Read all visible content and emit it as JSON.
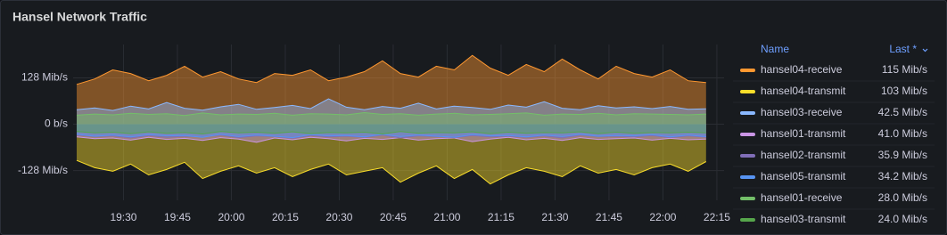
{
  "chart_data": {
    "type": "area",
    "title": "Hansel Network Traffic",
    "x": [
      "19:17",
      "19:22",
      "19:27",
      "19:32",
      "19:37",
      "19:42",
      "19:47",
      "19:52",
      "19:57",
      "20:02",
      "20:07",
      "20:12",
      "20:17",
      "20:22",
      "20:27",
      "20:32",
      "20:37",
      "20:42",
      "20:47",
      "20:52",
      "20:57",
      "21:02",
      "21:07",
      "21:12",
      "21:17",
      "21:22",
      "21:27",
      "21:32",
      "21:37",
      "21:42",
      "21:47",
      "21:52",
      "21:57",
      "22:02",
      "22:07",
      "22:12"
    ],
    "xlim": [
      "19:16",
      "22:17"
    ],
    "xticks": [
      "19:30",
      "19:45",
      "20:00",
      "20:15",
      "20:30",
      "20:45",
      "21:00",
      "21:15",
      "21:30",
      "21:45",
      "22:00",
      "22:15"
    ],
    "ylim": [
      -210,
      220
    ],
    "yticks": [
      {
        "value": 128,
        "label": "128 Mib/s"
      },
      {
        "value": 0,
        "label": "0 b/s"
      },
      {
        "value": -128,
        "label": "-128 Mib/s"
      }
    ],
    "grid": true,
    "legend": {
      "position": "right",
      "headers": [
        "Name",
        "Last *"
      ]
    },
    "series": [
      {
        "name": "hansel04-receive",
        "color": "#ff9830",
        "last_label": "115 Mib/s",
        "values": [
          110,
          125,
          150,
          140,
          120,
          135,
          160,
          130,
          145,
          125,
          115,
          140,
          135,
          150,
          120,
          130,
          145,
          175,
          140,
          130,
          160,
          150,
          190,
          155,
          135,
          165,
          145,
          180,
          150,
          125,
          160,
          140,
          130,
          150,
          120,
          115
        ]
      },
      {
        "name": "hansel04-transmit",
        "color": "#fade2a",
        "last_label": "103 Mib/s",
        "values": [
          -100,
          -120,
          -130,
          -110,
          -140,
          -125,
          -105,
          -150,
          -130,
          -115,
          -135,
          -120,
          -145,
          -125,
          -110,
          -140,
          -130,
          -120,
          -160,
          -135,
          -115,
          -150,
          -125,
          -165,
          -140,
          -120,
          -130,
          -145,
          -115,
          -135,
          -125,
          -140,
          -120,
          -110,
          -130,
          -103
        ]
      },
      {
        "name": "hansel03-receive",
        "color": "#8ab8ff",
        "last_label": "42.5 Mib/s",
        "values": [
          40,
          45,
          38,
          50,
          42,
          60,
          44,
          39,
          48,
          55,
          41,
          46,
          52,
          43,
          70,
          47,
          40,
          49,
          44,
          58,
          42,
          50,
          46,
          41,
          53,
          47,
          62,
          44,
          40,
          51,
          45,
          48,
          43,
          49,
          41,
          42.5
        ]
      },
      {
        "name": "hansel01-transmit",
        "color": "#ca95e5",
        "last_label": "41.0 Mib/s",
        "values": [
          -35,
          -40,
          -38,
          -44,
          -36,
          -42,
          -39,
          -45,
          -37,
          -41,
          -50,
          -38,
          -43,
          -36,
          -40,
          -46,
          -39,
          -42,
          -37,
          -44,
          -40,
          -38,
          -48,
          -41,
          -36,
          -43,
          -39,
          -45,
          -37,
          -42,
          -40,
          -38,
          -44,
          -39,
          -43,
          -41
        ]
      },
      {
        "name": "hansel02-transmit",
        "color": "#806eb7",
        "last_label": "35.9 Mib/s",
        "values": [
          -30,
          -34,
          -32,
          -38,
          -31,
          -36,
          -33,
          -35,
          -30,
          -37,
          -32,
          -34,
          -39,
          -31,
          -35,
          -33,
          -36,
          -30,
          -38,
          -32,
          -34,
          -37,
          -31,
          -35,
          -33,
          -36,
          -32,
          -38,
          -30,
          -34,
          -33,
          -35,
          -31,
          -37,
          -32,
          -35.9
        ]
      },
      {
        "name": "hansel05-transmit",
        "color": "#5794f2",
        "last_label": "34.2 Mib/s",
        "values": [
          -28,
          -33,
          -30,
          -35,
          -29,
          -32,
          -31,
          -36,
          -28,
          -34,
          -30,
          -33,
          -37,
          -29,
          -32,
          -31,
          -35,
          -28,
          -34,
          -30,
          -33,
          -36,
          -29,
          -32,
          -31,
          -35,
          -30,
          -34,
          -28,
          -33,
          -31,
          -32,
          -29,
          -35,
          -30,
          -34.2
        ]
      },
      {
        "name": "hansel01-receive",
        "color": "#73bf69",
        "last_label": "28.0 Mib/s",
        "values": [
          25,
          28,
          26,
          30,
          27,
          29,
          24,
          31,
          26,
          28,
          27,
          30,
          25,
          29,
          28,
          26,
          32,
          27,
          29,
          25,
          28,
          30,
          26,
          27,
          29,
          31,
          25,
          28,
          27,
          30,
          26,
          29,
          28,
          27,
          26,
          28
        ]
      },
      {
        "name": "hansel03-transmit",
        "color": "#56a64b",
        "last_label": "24.0 Mib/s",
        "values": [
          -20,
          -24,
          -22,
          -26,
          -21,
          -25,
          -23,
          -27,
          -20,
          -24,
          -22,
          -25,
          -21,
          -26,
          -23,
          -24,
          -22,
          -27,
          -20,
          -25,
          -23,
          -24,
          -21,
          -26,
          -22,
          -25,
          -23,
          -24,
          -21,
          -26,
          -22,
          -25,
          -23,
          -24,
          -22,
          -24
        ]
      }
    ]
  }
}
